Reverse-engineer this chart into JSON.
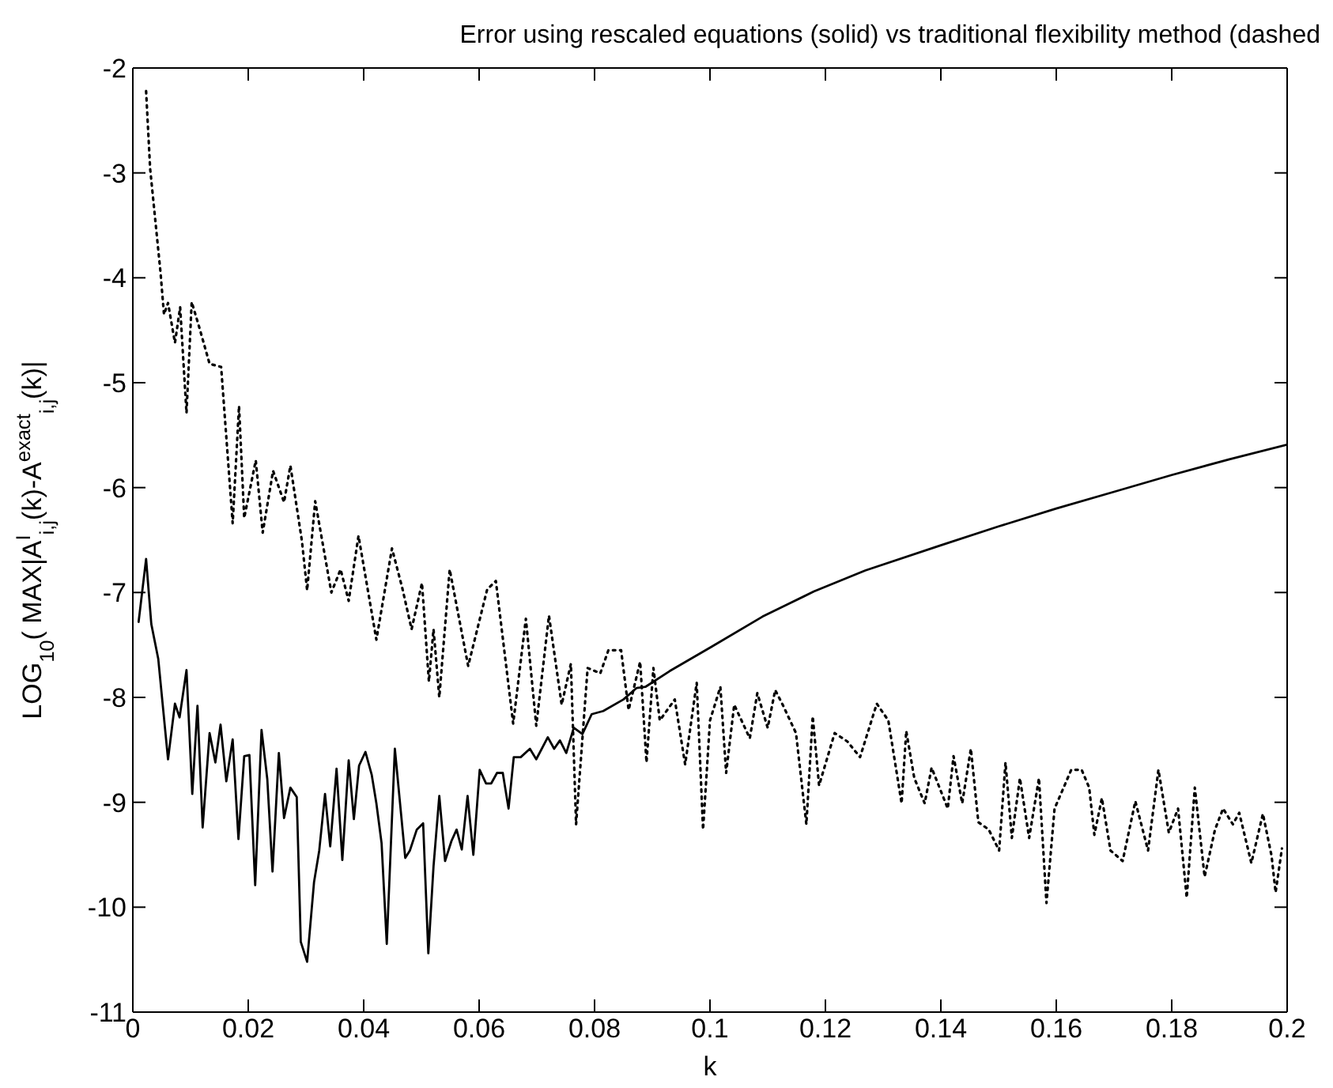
{
  "chart_data": {
    "type": "line",
    "title": "Error using rescaled equations (solid) vs traditional flexibility method (dashed",
    "xlabel": "k",
    "ylabel": "LOG$_{10}$( MAX|A$^{I}$$_{i,j}$(k)-A$^{exact}$$_{i,j}$(k)|",
    "xlim": [
      0,
      0.2
    ],
    "ylim": [
      -11,
      -2
    ],
    "xticks": [
      0,
      0.02,
      0.04,
      0.06,
      0.08,
      0.1,
      0.12,
      0.14,
      0.16,
      0.18,
      0.2
    ],
    "yticks": [
      -11,
      -10,
      -9,
      -8,
      -7,
      -6,
      -5,
      -4,
      -3,
      -2
    ],
    "marker": "none",
    "series": [
      {
        "color": "#000000",
        "line_style": "solid",
        "x": [
          0.001,
          0.0023,
          0.0032,
          0.0044,
          0.0061,
          0.0073,
          0.0081,
          0.0093,
          0.0103,
          0.0112,
          0.0121,
          0.0133,
          0.0143,
          0.0152,
          0.0162,
          0.0173,
          0.0183,
          0.0193,
          0.0202,
          0.0212,
          0.0223,
          0.0233,
          0.0242,
          0.0253,
          0.0262,
          0.0273,
          0.0284,
          0.0291,
          0.0302,
          0.0314,
          0.0323,
          0.0333,
          0.0342,
          0.0353,
          0.0363,
          0.0374,
          0.0383,
          0.0392,
          0.0403,
          0.0414,
          0.0422,
          0.0431,
          0.044,
          0.0454,
          0.0472,
          0.048,
          0.0492,
          0.0503,
          0.0512,
          0.0521,
          0.0531,
          0.0541,
          0.0552,
          0.0561,
          0.057,
          0.058,
          0.059,
          0.0601,
          0.0612,
          0.0621,
          0.0631,
          0.0641,
          0.0651,
          0.066,
          0.0672,
          0.0688,
          0.0699,
          0.0719,
          0.073,
          0.074,
          0.0751,
          0.0764,
          0.0779,
          0.0795,
          0.0815,
          0.085,
          0.0873,
          0.0888,
          0.093,
          0.1002,
          0.1091,
          0.118,
          0.1269,
          0.14,
          0.15,
          0.16,
          0.17,
          0.18,
          0.19,
          0.2
        ],
        "values": [
          -7.28,
          -6.68,
          -7.3,
          -7.63,
          -8.59,
          -8.06,
          -8.19,
          -7.74,
          -8.92,
          -8.08,
          -9.24,
          -8.34,
          -8.62,
          -8.26,
          -8.8,
          -8.4,
          -9.35,
          -8.56,
          -8.55,
          -9.79,
          -8.31,
          -8.78,
          -9.66,
          -8.53,
          -9.15,
          -8.86,
          -8.95,
          -10.33,
          -10.52,
          -9.76,
          -9.46,
          -8.92,
          -9.42,
          -8.68,
          -9.55,
          -8.6,
          -9.16,
          -8.65,
          -8.52,
          -8.74,
          -9.01,
          -9.39,
          -10.35,
          -8.49,
          -9.53,
          -9.46,
          -9.26,
          -9.2,
          -10.44,
          -9.61,
          -8.94,
          -9.56,
          -9.37,
          -9.26,
          -9.45,
          -8.94,
          -9.5,
          -8.69,
          -8.82,
          -8.82,
          -8.72,
          -8.72,
          -9.06,
          -8.57,
          -8.57,
          -8.49,
          -8.59,
          -8.38,
          -8.49,
          -8.41,
          -8.53,
          -8.29,
          -8.35,
          -8.16,
          -8.13,
          -8.02,
          -7.91,
          -7.9,
          -7.75,
          -7.52,
          -7.23,
          -6.99,
          -6.79,
          -6.55,
          -6.37,
          -6.2,
          -6.04,
          -5.88,
          -5.73,
          -5.59
        ]
      },
      {
        "color": "#000000",
        "line_style": "dotted",
        "x": [
          0.0023,
          0.003,
          0.0048,
          0.0054,
          0.0061,
          0.0073,
          0.0082,
          0.0093,
          0.0102,
          0.0115,
          0.0133,
          0.0153,
          0.0173,
          0.0184,
          0.0193,
          0.0213,
          0.0225,
          0.0243,
          0.0262,
          0.0273,
          0.0293,
          0.0302,
          0.0316,
          0.0344,
          0.036,
          0.0374,
          0.0391,
          0.0422,
          0.0449,
          0.0467,
          0.0483,
          0.0501,
          0.0513,
          0.0521,
          0.0531,
          0.0549,
          0.0581,
          0.0614,
          0.0629,
          0.0659,
          0.0681,
          0.0699,
          0.0721,
          0.0743,
          0.0759,
          0.0768,
          0.0788,
          0.081,
          0.0824,
          0.0846,
          0.0859,
          0.0879,
          0.089,
          0.0902,
          0.0913,
          0.0939,
          0.0957,
          0.0977,
          0.0988,
          0.1,
          0.1018,
          0.1028,
          0.1042,
          0.1069,
          0.1082,
          0.11,
          0.1113,
          0.1126,
          0.1149,
          0.1167,
          0.1178,
          0.1189,
          0.1216,
          0.1238,
          0.126,
          0.1289,
          0.1309,
          0.1332,
          0.134,
          0.1354,
          0.1372,
          0.1384,
          0.1412,
          0.1422,
          0.1437,
          0.1452,
          0.1465,
          0.1483,
          0.1501,
          0.1512,
          0.1523,
          0.1537,
          0.1553,
          0.157,
          0.1583,
          0.1597,
          0.1626,
          0.1644,
          0.1657,
          0.1666,
          0.1679,
          0.1694,
          0.1715,
          0.1737,
          0.1759,
          0.1777,
          0.1795,
          0.1811,
          0.1826,
          0.184,
          0.1857,
          0.1875,
          0.1889,
          0.1906,
          0.1917,
          0.1938,
          0.1958,
          0.1973,
          0.198,
          0.1991
        ],
        "values": [
          -2.22,
          -2.96,
          -3.95,
          -4.35,
          -4.24,
          -4.62,
          -4.28,
          -5.29,
          -4.23,
          -4.47,
          -4.82,
          -4.85,
          -6.34,
          -5.22,
          -6.29,
          -5.74,
          -6.43,
          -5.84,
          -6.14,
          -5.79,
          -6.51,
          -6.98,
          -6.13,
          -7.0,
          -6.78,
          -7.08,
          -6.46,
          -7.45,
          -6.58,
          -6.96,
          -7.35,
          -6.91,
          -7.85,
          -7.35,
          -8.0,
          -6.78,
          -7.7,
          -6.97,
          -6.89,
          -8.25,
          -7.25,
          -8.27,
          -7.22,
          -8.07,
          -7.68,
          -9.21,
          -7.72,
          -7.77,
          -7.55,
          -7.55,
          -8.12,
          -7.66,
          -8.62,
          -7.72,
          -8.22,
          -8.02,
          -8.64,
          -7.86,
          -9.26,
          -8.22,
          -7.9,
          -8.72,
          -8.07,
          -8.39,
          -7.96,
          -8.29,
          -7.93,
          -8.07,
          -8.34,
          -9.21,
          -8.18,
          -8.84,
          -8.34,
          -8.42,
          -8.57,
          -8.06,
          -8.22,
          -9.01,
          -8.32,
          -8.77,
          -9.01,
          -8.67,
          -9.06,
          -8.56,
          -9.01,
          -8.49,
          -9.19,
          -9.26,
          -9.46,
          -8.62,
          -9.34,
          -8.77,
          -9.34,
          -8.77,
          -9.96,
          -9.06,
          -8.69,
          -8.69,
          -8.86,
          -9.31,
          -8.96,
          -9.46,
          -9.56,
          -8.99,
          -9.46,
          -8.69,
          -9.29,
          -9.06,
          -9.91,
          -8.86,
          -9.71,
          -9.26,
          -9.06,
          -9.21,
          -9.1,
          -9.58,
          -9.11,
          -9.51,
          -9.86,
          -9.44
        ]
      }
    ]
  }
}
